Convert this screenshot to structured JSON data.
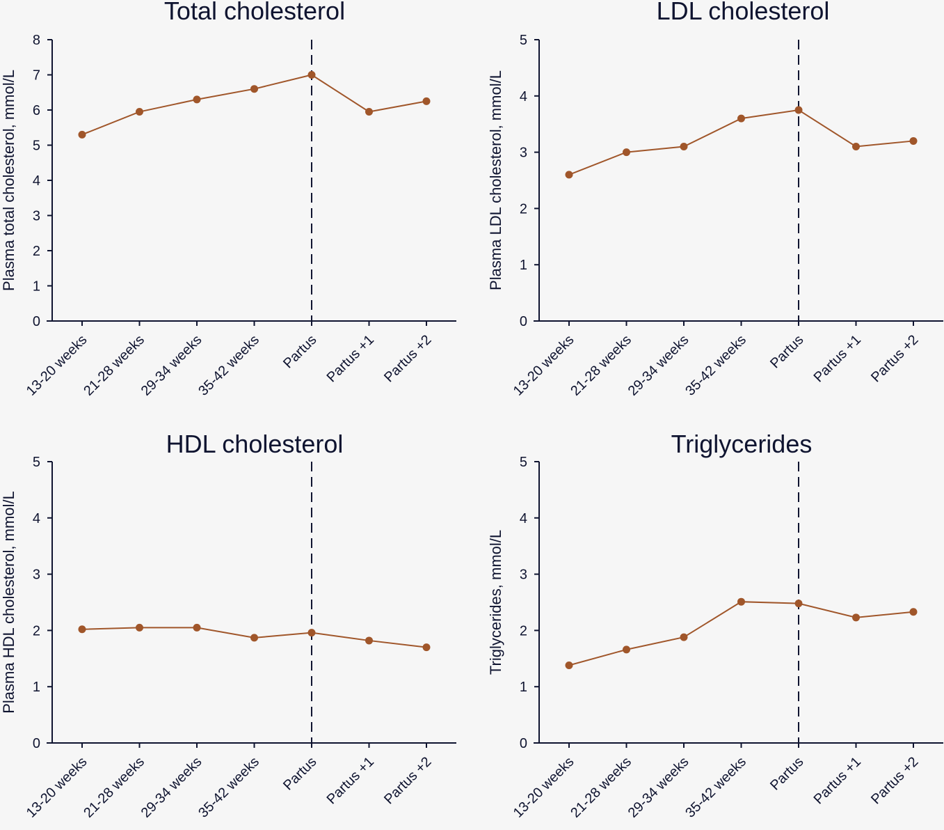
{
  "chart_data": [
    {
      "type": "line",
      "title": "Total cholesterol",
      "xlabel": "",
      "ylabel": "Plasma total cholesterol, mmol/L",
      "categories": [
        "13-20 weeks",
        "21-28 weeks",
        "29-34 weeks",
        "35-42 weeks",
        "Partus",
        "Partus +1",
        "Partus +2"
      ],
      "series": [
        {
          "name": "Total cholesterol",
          "values": [
            5.3,
            5.95,
            6.3,
            6.6,
            7.0,
            5.95,
            6.25
          ]
        }
      ],
      "ylim": [
        0,
        8
      ],
      "yticks": [
        0,
        1,
        2,
        3,
        4,
        5,
        6,
        7,
        8
      ],
      "reference_line": {
        "at_category": "Partus",
        "style": "dashed"
      },
      "grid": false
    },
    {
      "type": "line",
      "title": "LDL cholesterol",
      "xlabel": "",
      "ylabel": "Plasma LDL cholesterol, mmol/L",
      "categories": [
        "13-20 weeks",
        "21-28 weeks",
        "29-34 weeks",
        "35-42 weeks",
        "Partus",
        "Partus +1",
        "Partus +2"
      ],
      "series": [
        {
          "name": "LDL cholesterol",
          "values": [
            2.6,
            3.0,
            3.1,
            3.6,
            3.75,
            3.1,
            3.2
          ]
        }
      ],
      "ylim": [
        0,
        5
      ],
      "yticks": [
        0,
        1,
        2,
        3,
        4,
        5
      ],
      "reference_line": {
        "at_category": "Partus",
        "style": "dashed"
      },
      "grid": false
    },
    {
      "type": "line",
      "title": "HDL cholesterol",
      "xlabel": "",
      "ylabel": "Plasma HDL cholesterol, mmol/L",
      "categories": [
        "13-20 weeks",
        "21-28 weeks",
        "29-34 weeks",
        "35-42 weeks",
        "Partus",
        "Partus +1",
        "Partus +2"
      ],
      "series": [
        {
          "name": "HDL cholesterol",
          "values": [
            2.02,
            2.05,
            2.05,
            1.87,
            1.96,
            1.82,
            1.7
          ]
        }
      ],
      "ylim": [
        0,
        5
      ],
      "yticks": [
        0,
        1,
        2,
        3,
        4,
        5
      ],
      "reference_line": {
        "at_category": "Partus",
        "style": "dashed"
      },
      "grid": false
    },
    {
      "type": "line",
      "title": "Triglycerides",
      "xlabel": "",
      "ylabel": "Triglycerides, mmol/L",
      "categories": [
        "13-20 weeks",
        "21-28 weeks",
        "29-34 weeks",
        "35-42 weeks",
        "Partus",
        "Partus +1",
        "Partus +2"
      ],
      "series": [
        {
          "name": "Triglycerides",
          "values": [
            1.38,
            1.66,
            1.88,
            2.51,
            2.48,
            2.23,
            2.33
          ]
        }
      ],
      "ylim": [
        0,
        5
      ],
      "yticks": [
        0,
        1,
        2,
        3,
        4,
        5
      ],
      "reference_line": {
        "at_category": "Partus",
        "style": "dashed"
      },
      "grid": false
    }
  ],
  "colors": {
    "series": "#a0562a",
    "axis": "#0f1430",
    "background": "#f6f6f6"
  }
}
